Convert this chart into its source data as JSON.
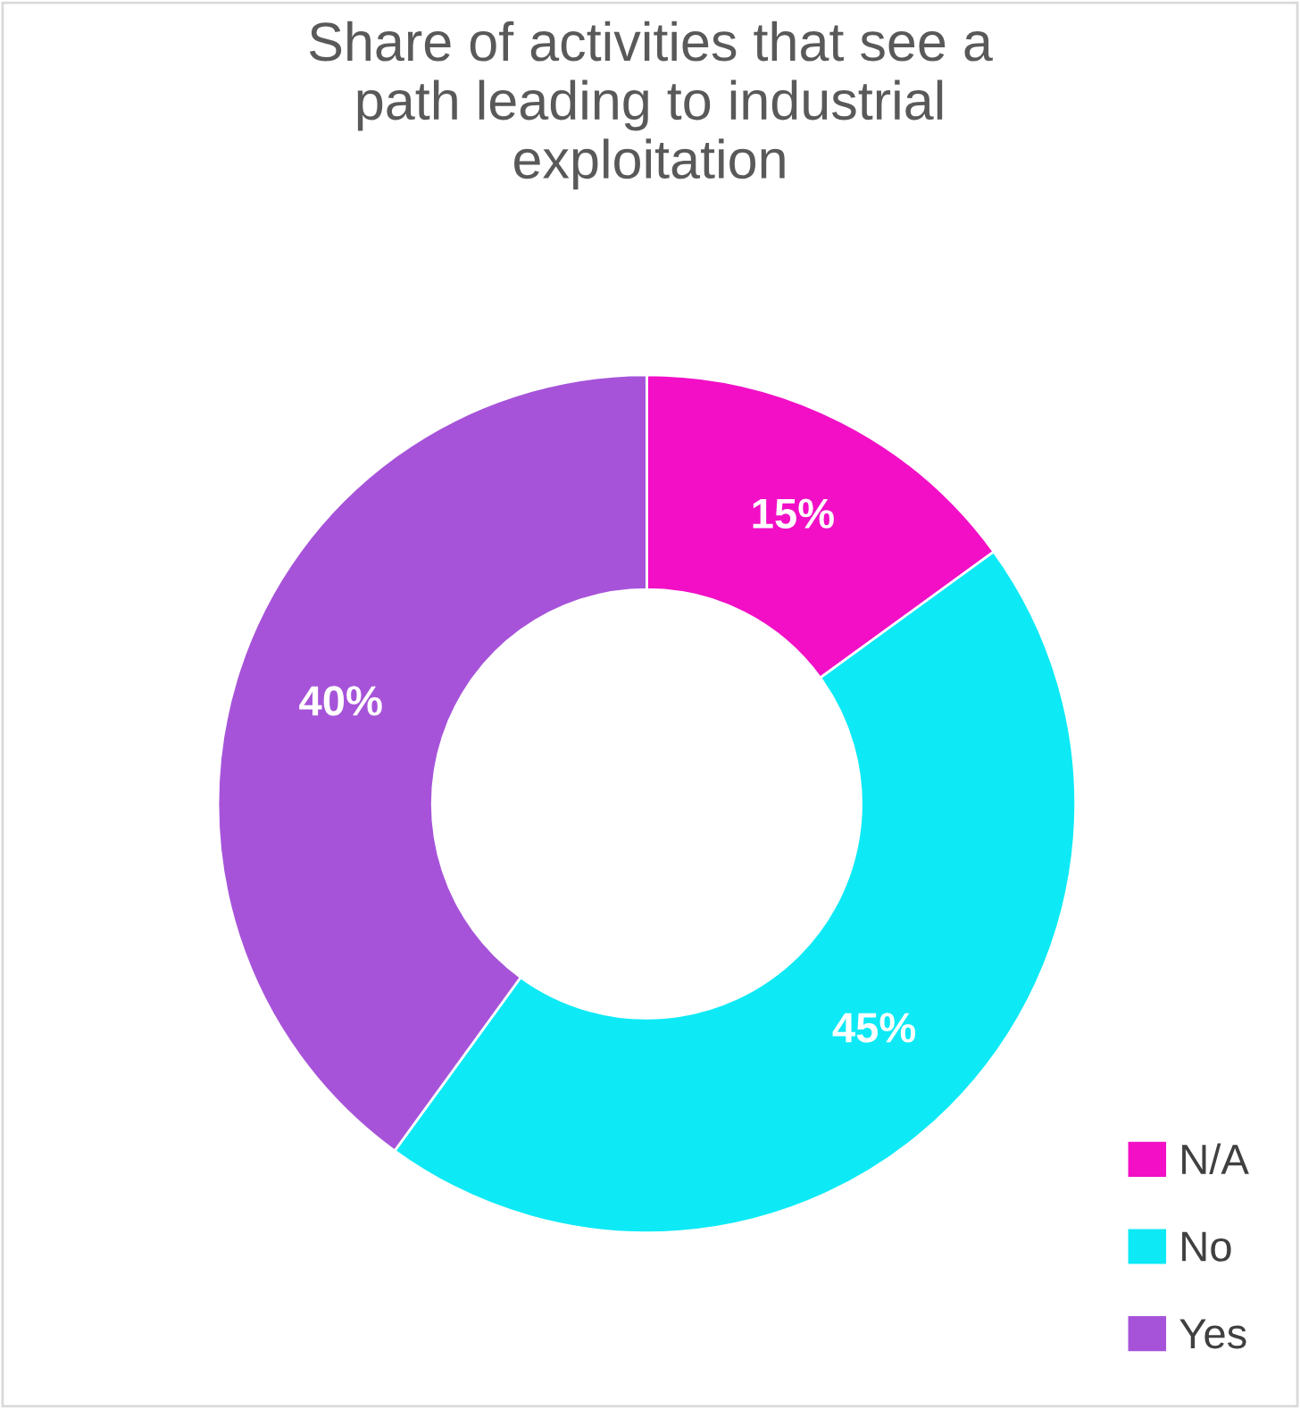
{
  "chart_data": {
    "type": "donut",
    "title": "Share of activities that see a\npath leading to industrial\nexploitation",
    "categories": [
      "N/A",
      "No",
      "Yes"
    ],
    "values": [
      15,
      45,
      40
    ],
    "colors": [
      "#f20fc6",
      "#0deaf6",
      "#a653d9"
    ],
    "value_labels": [
      "15%",
      "45%",
      "40%"
    ],
    "legend": "bottom right"
  }
}
